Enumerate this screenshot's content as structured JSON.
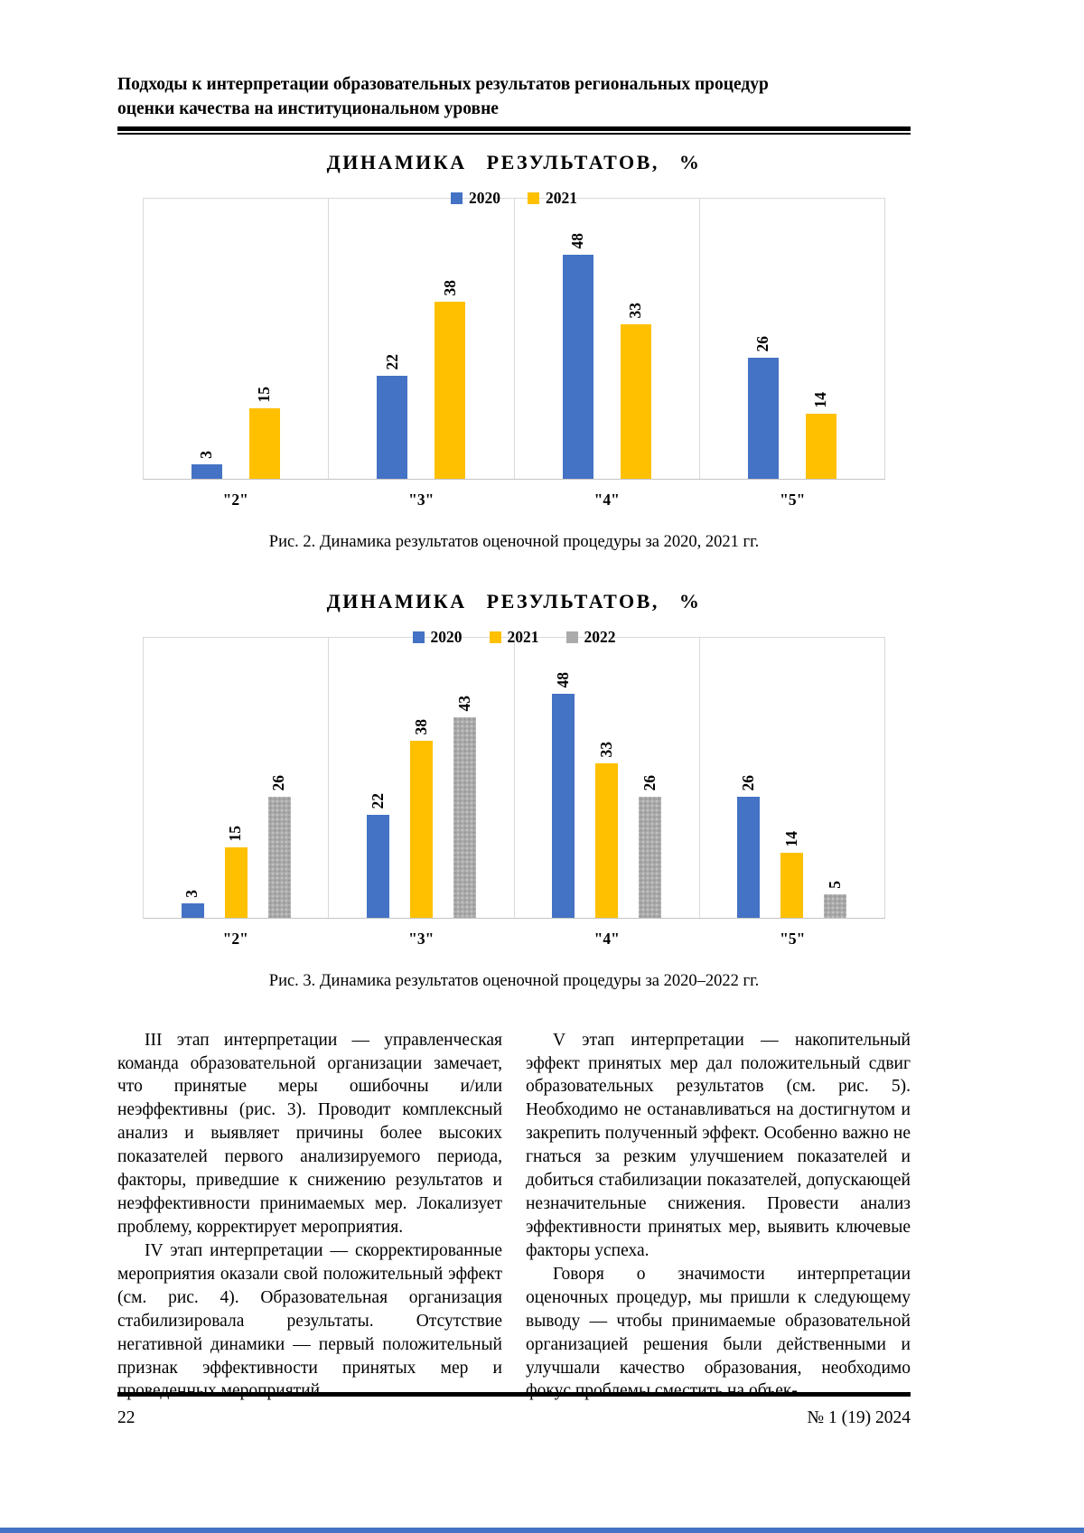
{
  "header": {
    "line1": "Подходы к интерпретации образовательных результатов региональных процедур",
    "line2": "оценки качества на институциональном уровне"
  },
  "colors": {
    "blue": "#4472C4",
    "yellow": "#FFC000",
    "gray": "#ABABAB",
    "grid": "#D9D9D9",
    "bottom_bar": "#4472C4"
  },
  "chart_data": [
    {
      "type": "bar",
      "title": "ДИНАМИКА РЕЗУЛЬТАТОВ, %",
      "categories": [
        "\"2\"",
        "\"3\"",
        "\"4\"",
        "\"5\""
      ],
      "series": [
        {
          "name": "2020",
          "color_key": "blue",
          "values": [
            3,
            22,
            48,
            26
          ]
        },
        {
          "name": "2021",
          "color_key": "yellow",
          "values": [
            15,
            38,
            33,
            14
          ]
        }
      ],
      "ylim": [
        0,
        60
      ],
      "grid": "vertical panel separators only",
      "legend_position": "top-center",
      "data_labels": "rotated 90°, above bars",
      "caption": "Рис. 2. Динамика результатов оценочной процедуры за 2020, 2021 гг."
    },
    {
      "type": "bar",
      "title": "ДИНАМИКА РЕЗУЛЬТАТОВ, %",
      "categories": [
        "\"2\"",
        "\"3\"",
        "\"4\"",
        "\"5\""
      ],
      "series": [
        {
          "name": "2020",
          "color_key": "blue",
          "values": [
            3,
            22,
            48,
            26
          ]
        },
        {
          "name": "2021",
          "color_key": "yellow",
          "values": [
            15,
            38,
            33,
            14
          ]
        },
        {
          "name": "2022",
          "color_key": "gray",
          "values": [
            26,
            43,
            26,
            5
          ]
        }
      ],
      "ylim": [
        0,
        60
      ],
      "grid": "vertical panel separators only",
      "legend_position": "top-center",
      "data_labels": "rotated 90°, above bars",
      "caption": "Рис. 3. Динамика результатов оценочной процедуры за 2020–2022 гг."
    }
  ],
  "body": {
    "left_column": [
      "III этап интерпретации — управленческая команда образовательной организации замечает, что принятые меры ошибочны и/или неэффективны (рис. 3). Проводит комплексный анализ и выявляет причины более высоких показателей первого анализируемого периода, факторы, приведшие к снижению результатов и неэффективности принимаемых мер. Локализует проблему, корректирует мероприятия.",
      "IV этап интерпретации — скорректированные мероприятия оказали свой положительный эффект (см. рис. 4). Образовательная организация стабилизировала результаты. Отсутствие негативной динамики — первый положительный признак эффективности принятых мер и проведенных мероприятий."
    ],
    "right_column": [
      "V этап интерпретации — накопительный эффект принятых мер дал положительный сдвиг образовательных результатов (см. рис. 5). Необходимо не останавливаться на достигнутом и закрепить полученный эффект. Особенно важно не гнаться за резким улучшением показателей и добиться стабилизации показателей, допускающей незначительные снижения. Провести анализ эффективности принятых мер, выявить ключевые факторы успеха.",
      "Говоря о значимости интерпретации оценочных процедур, мы пришли к следующему выводу — чтобы принимаемые образовательной организацией решения были действенными и улучшали качество образования, необходимо фокус проблемы сместить на объек-"
    ]
  },
  "footer": {
    "page_number": "22",
    "issue": "№ 1 (19) 2024"
  }
}
